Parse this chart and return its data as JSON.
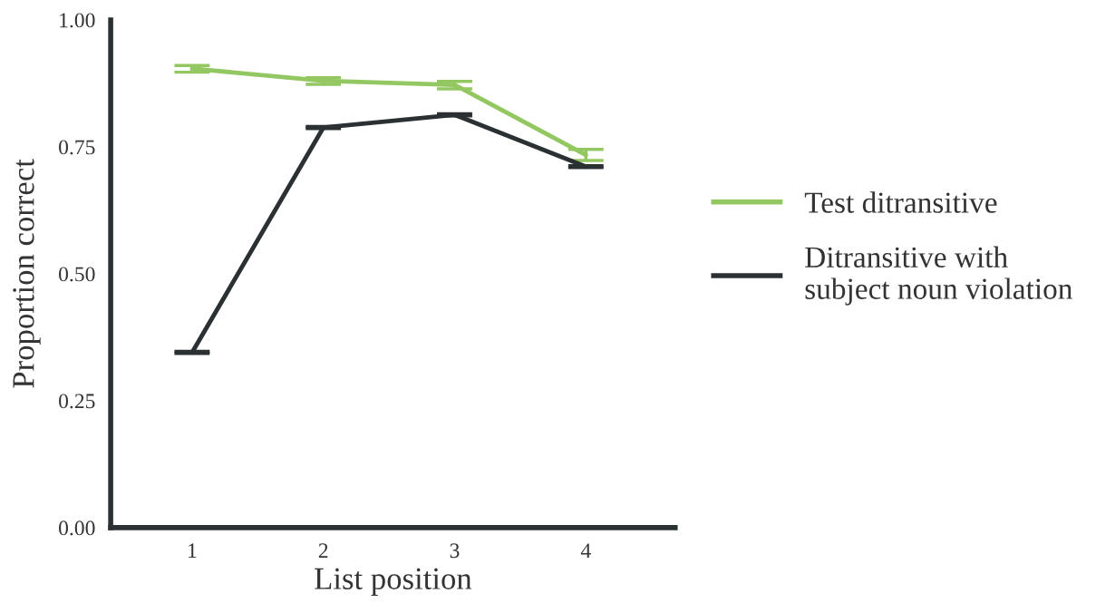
{
  "chart_data": {
    "type": "line",
    "xlabel": "List position",
    "ylabel": "Proportion correct",
    "categories": [
      "1",
      "2",
      "3",
      "4"
    ],
    "series": [
      {
        "name": "Test ditransitive",
        "color": "#93c762",
        "values": [
          0.904,
          0.88,
          0.872,
          0.734
        ],
        "errors": [
          [
            0.897,
            0.91
          ],
          [
            0.873,
            0.886
          ],
          [
            0.864,
            0.879
          ],
          [
            0.723,
            0.745
          ]
        ]
      },
      {
        "name": "Ditransitive with\nsubject noun violation",
        "color": "#2b3133",
        "values": [
          0.345,
          0.788,
          0.813,
          0.711
        ],
        "errors": [
          0.002,
          0.002,
          0.002,
          0.002
        ]
      }
    ],
    "ylim": [
      0,
      1
    ],
    "yticks": [
      {
        "value": 0,
        "label": "0.00"
      },
      {
        "value": 0.25,
        "label": "0.25"
      },
      {
        "value": 0.5,
        "label": "0.50"
      },
      {
        "value": 0.75,
        "label": "0.75"
      },
      {
        "value": 1,
        "label": "1.00"
      }
    ],
    "grid": false,
    "legend": "right"
  }
}
